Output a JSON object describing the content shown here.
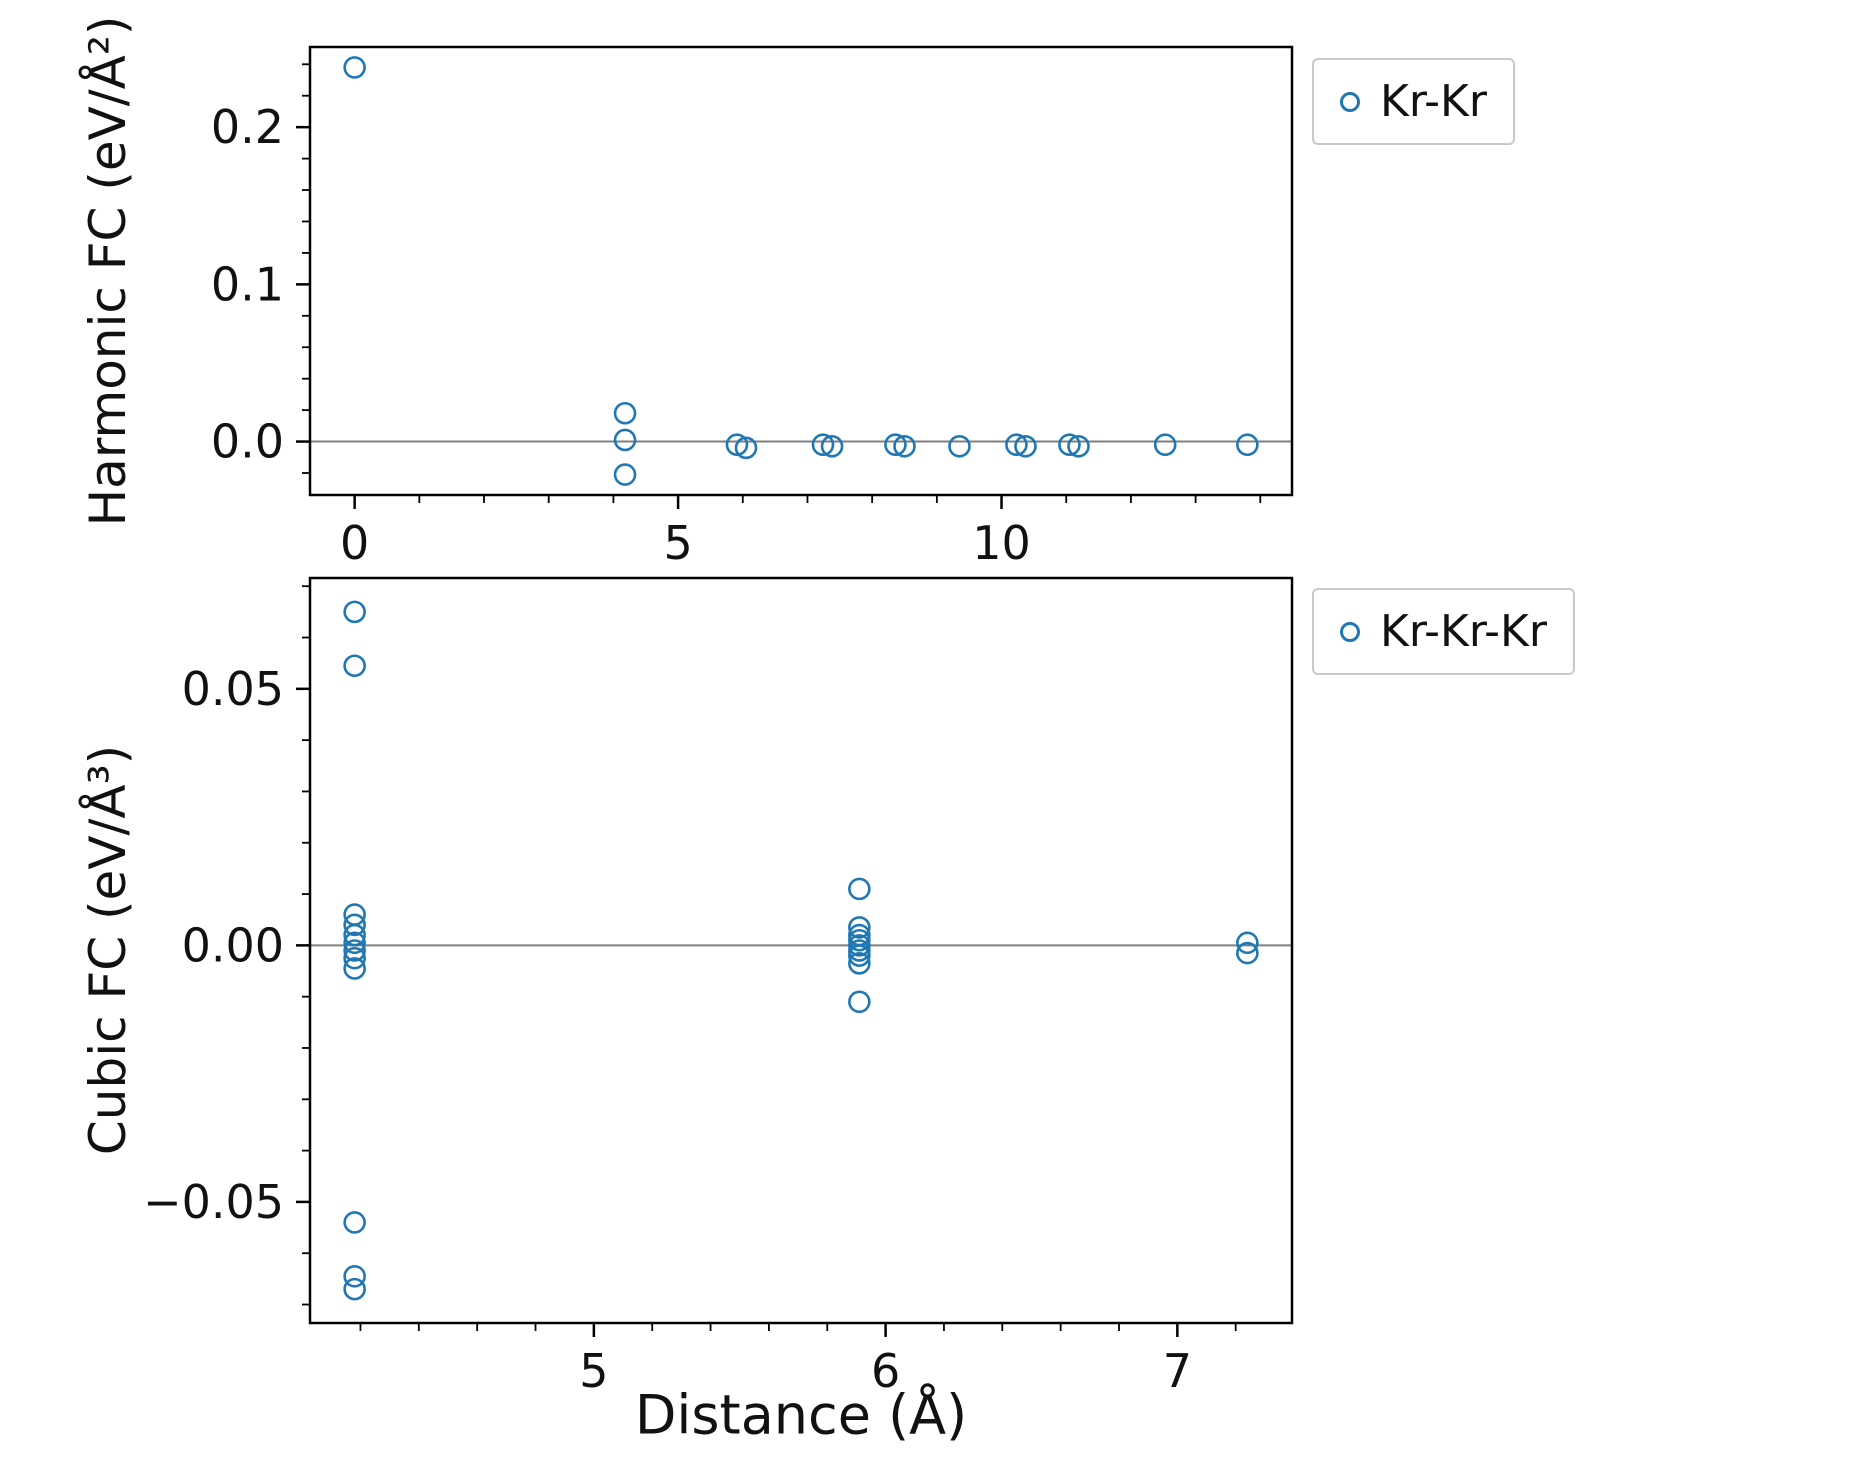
{
  "figure": {
    "background": "#ffffff",
    "marker_color": "#1f77b4",
    "zero_line_color": "#7f7f7f",
    "axis_color": "#000000"
  },
  "chart_data": [
    {
      "id": "harmonic",
      "type": "scatter",
      "ylabel": "Harmonic FC (eV/Å²)",
      "xlabel": "",
      "legend": "Kr-Kr",
      "legend_position": "outside-top-right",
      "grid": false,
      "zero_line": true,
      "marker": "open-circle",
      "xlim": [
        -0.69,
        14.49
      ],
      "ylim": [
        -0.034,
        0.251
      ],
      "xticks": [
        0,
        5,
        10
      ],
      "xtick_labels": [
        "0",
        "5",
        "10"
      ],
      "yticks": [
        0.0,
        0.1,
        0.2
      ],
      "ytick_labels": [
        "0.0",
        "0.1",
        "0.2"
      ],
      "xminor_step": 1,
      "yminor_step": 0.02,
      "points": [
        [
          0.0,
          0.238
        ],
        [
          4.18,
          0.018
        ],
        [
          4.18,
          0.001
        ],
        [
          4.18,
          -0.021
        ],
        [
          5.91,
          -0.002
        ],
        [
          6.05,
          -0.004
        ],
        [
          7.24,
          -0.002
        ],
        [
          7.38,
          -0.003
        ],
        [
          8.36,
          -0.002
        ],
        [
          8.5,
          -0.003
        ],
        [
          9.35,
          -0.003
        ],
        [
          10.23,
          -0.002
        ],
        [
          10.37,
          -0.003
        ],
        [
          11.05,
          -0.002
        ],
        [
          11.19,
          -0.003
        ],
        [
          12.53,
          -0.002
        ],
        [
          13.8,
          -0.002
        ]
      ]
    },
    {
      "id": "cubic",
      "type": "scatter",
      "ylabel": "Cubic FC (eV/Å³)",
      "xlabel": "Distance (Å)",
      "legend": "Kr-Kr-Kr",
      "legend_position": "outside-top-right",
      "grid": false,
      "zero_line": true,
      "marker": "open-circle",
      "xlim": [
        4.027,
        7.393
      ],
      "ylim": [
        -0.0736,
        0.0716
      ],
      "xticks": [
        5,
        6,
        7
      ],
      "xtick_labels": [
        "5",
        "6",
        "7"
      ],
      "yticks": [
        -0.05,
        0.0,
        0.05
      ],
      "ytick_labels": [
        "−0.05",
        "0.00",
        "0.05"
      ],
      "xminor_step": 0.2,
      "yminor_step": 0.01,
      "points": [
        [
          4.18,
          0.065
        ],
        [
          4.18,
          0.0545
        ],
        [
          4.18,
          0.006
        ],
        [
          4.18,
          0.004
        ],
        [
          4.18,
          0.002
        ],
        [
          4.18,
          0.0005
        ],
        [
          4.18,
          -0.001
        ],
        [
          4.18,
          -0.0025
        ],
        [
          4.18,
          -0.0045
        ],
        [
          4.18,
          -0.054
        ],
        [
          4.18,
          -0.0645
        ],
        [
          4.18,
          -0.067
        ],
        [
          5.91,
          0.011
        ],
        [
          5.91,
          0.0035
        ],
        [
          5.91,
          0.002
        ],
        [
          5.91,
          0.001
        ],
        [
          5.91,
          0.0
        ],
        [
          5.91,
          -0.001
        ],
        [
          5.91,
          -0.002
        ],
        [
          5.91,
          -0.0035
        ],
        [
          5.91,
          -0.011
        ],
        [
          7.24,
          0.0005
        ],
        [
          7.24,
          -0.0015
        ]
      ]
    }
  ]
}
